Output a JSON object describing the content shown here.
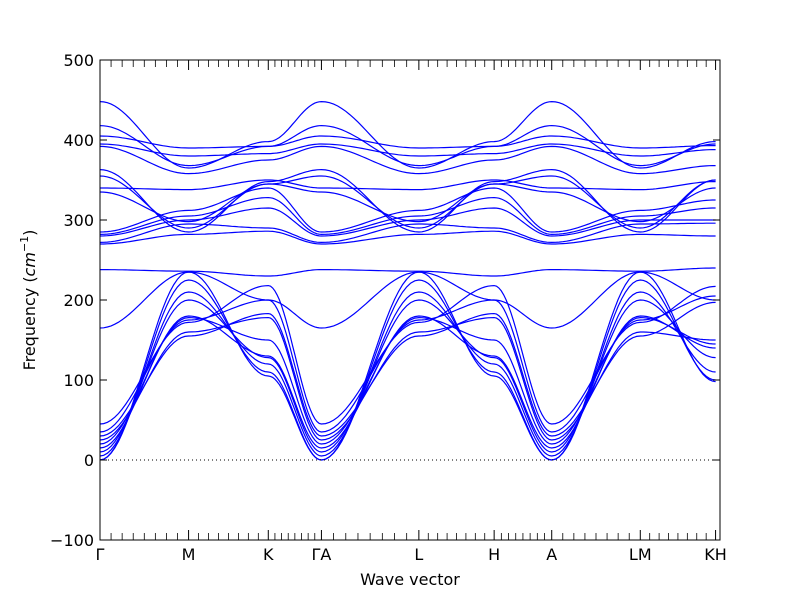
{
  "chart_data": {
    "type": "line",
    "title": "",
    "xlabel": "Wave vector",
    "ylabel_prefix": "Frequency (",
    "ylabel_unit": "cm",
    "ylabel_exp": "−1",
    "ylabel_suffix": ")",
    "ylim": [
      -100,
      500
    ],
    "y_ticks": [
      -100,
      0,
      100,
      200,
      300,
      400,
      500
    ],
    "y_tick_labels": [
      "−100",
      "0",
      "100",
      "200",
      "300",
      "400",
      "500"
    ],
    "zero_line": true,
    "grid": false,
    "line_color": "#0000ff",
    "high_symmetry_points": [
      {
        "label": "Γ",
        "x": 0.0
      },
      {
        "label": "M",
        "x": 1.0
      },
      {
        "label": "K",
        "x": 1.9
      },
      {
        "label": "ΓA",
        "x": 2.5
      },
      {
        "label": "L",
        "x": 3.6
      },
      {
        "label": "H",
        "x": 4.45
      },
      {
        "label": "A",
        "x": 5.1
      },
      {
        "label": "LM",
        "x": 6.1
      },
      {
        "label": "KH",
        "x": 6.95
      }
    ],
    "x_range": [
      0,
      7.0
    ],
    "series": [
      {
        "values": [
          0,
          235,
          105,
          0,
          235,
          105,
          0,
          235,
          98
        ]
      },
      {
        "values": [
          0,
          225,
          110,
          0,
          225,
          110,
          0,
          225,
          100
        ]
      },
      {
        "values": [
          5,
          210,
          120,
          5,
          210,
          120,
          5,
          210,
          110
        ]
      },
      {
        "values": [
          10,
          200,
          128,
          10,
          200,
          128,
          10,
          200,
          128
        ]
      },
      {
        "values": [
          15,
          180,
          130,
          15,
          180,
          130,
          15,
          180,
          140
        ]
      },
      {
        "values": [
          20,
          178,
          150,
          20,
          178,
          150,
          20,
          178,
          145
        ]
      },
      {
        "values": [
          25,
          160,
          178,
          25,
          160,
          178,
          25,
          160,
          150
        ]
      },
      {
        "values": [
          30,
          155,
          183,
          30,
          155,
          183,
          30,
          155,
          197
        ]
      },
      {
        "values": [
          35,
          175,
          200,
          35,
          175,
          200,
          35,
          175,
          205
        ]
      },
      {
        "values": [
          45,
          172,
          218,
          45,
          172,
          218,
          45,
          172,
          217
        ]
      },
      {
        "values": [
          165,
          235,
          200,
          165,
          235,
          200,
          165,
          235,
          200
        ]
      },
      {
        "values": [
          238,
          236,
          230,
          238,
          236,
          230,
          238,
          236,
          240
        ]
      },
      {
        "values": [
          270,
          282,
          286,
          270,
          282,
          286,
          270,
          282,
          280
        ]
      },
      {
        "values": [
          272,
          295,
          290,
          272,
          295,
          290,
          272,
          295,
          296
        ]
      },
      {
        "values": [
          280,
          300,
          315,
          280,
          300,
          315,
          280,
          300,
          300
        ]
      },
      {
        "values": [
          282,
          305,
          328,
          282,
          305,
          328,
          282,
          305,
          315
        ]
      },
      {
        "values": [
          285,
          312,
          340,
          285,
          312,
          340,
          285,
          312,
          325
        ]
      },
      {
        "values": [
          335,
          298,
          345,
          335,
          298,
          345,
          335,
          298,
          340
        ]
      },
      {
        "values": [
          340,
          338,
          350,
          340,
          338,
          350,
          340,
          338,
          348
        ]
      },
      {
        "values": [
          355,
          290,
          345,
          355,
          290,
          345,
          355,
          290,
          350
        ]
      },
      {
        "values": [
          363,
          285,
          348,
          363,
          285,
          348,
          363,
          285,
          350
        ]
      },
      {
        "values": [
          392,
          358,
          375,
          392,
          358,
          375,
          392,
          358,
          368
        ]
      },
      {
        "values": [
          395,
          380,
          383,
          395,
          380,
          383,
          395,
          380,
          388
        ]
      },
      {
        "values": [
          405,
          390,
          392,
          405,
          390,
          392,
          405,
          390,
          393
        ]
      },
      {
        "values": [
          418,
          368,
          392,
          418,
          368,
          392,
          418,
          368,
          395
        ]
      },
      {
        "values": [
          448,
          365,
          398,
          448,
          365,
          398,
          448,
          365,
          398
        ]
      }
    ]
  }
}
